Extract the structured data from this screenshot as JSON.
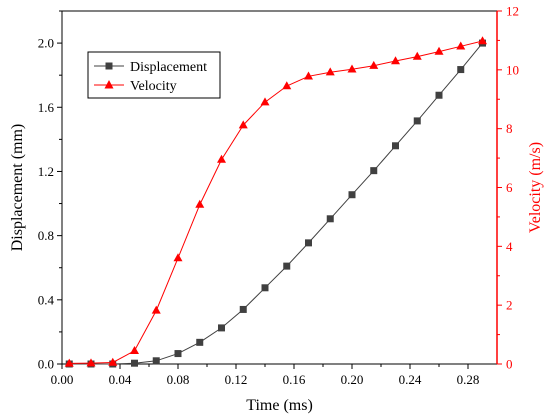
{
  "chart_data": {
    "type": "line",
    "xlabel": "Time (ms)",
    "ylabel_left": "Displacement (mm)",
    "ylabel_right": "Velocity (m/s)",
    "xlim": [
      0,
      0.3
    ],
    "ylim_left": [
      0,
      2.2
    ],
    "ylim_right": [
      0,
      12
    ],
    "x_ticks": [
      "0.00",
      "0.04",
      "0.08",
      "0.12",
      "0.16",
      "0.20",
      "0.24",
      "0.28"
    ],
    "y_left_ticks": [
      "0.0",
      "0.4",
      "0.8",
      "1.2",
      "1.6",
      "2.0"
    ],
    "y_right_ticks": [
      "0",
      "2",
      "4",
      "6",
      "8",
      "10",
      "12"
    ],
    "grid": false,
    "legend_position": "top-left",
    "series": [
      {
        "name": "Displacement",
        "axis": "left",
        "marker": "square",
        "color": "#404040",
        "x": [
          0.005,
          0.02,
          0.035,
          0.05,
          0.065,
          0.08,
          0.095,
          0.11,
          0.125,
          0.14,
          0.155,
          0.17,
          0.185,
          0.2,
          0.215,
          0.23,
          0.245,
          0.26,
          0.275,
          0.29
        ],
        "values": [
          0.0,
          0.0,
          0.0,
          0.005,
          0.02,
          0.065,
          0.135,
          0.225,
          0.34,
          0.475,
          0.61,
          0.755,
          0.905,
          1.055,
          1.205,
          1.36,
          1.515,
          1.675,
          1.835,
          2.0
        ]
      },
      {
        "name": "Velocity",
        "axis": "right",
        "marker": "triangle",
        "color": "#ff0000",
        "x": [
          0.005,
          0.02,
          0.035,
          0.05,
          0.065,
          0.08,
          0.095,
          0.11,
          0.125,
          0.14,
          0.155,
          0.17,
          0.185,
          0.2,
          0.215,
          0.23,
          0.245,
          0.26,
          0.275,
          0.29
        ],
        "values": [
          0.02,
          0.03,
          0.05,
          0.45,
          1.82,
          3.6,
          5.42,
          6.95,
          8.12,
          8.9,
          9.45,
          9.78,
          9.92,
          10.02,
          10.14,
          10.3,
          10.45,
          10.62,
          10.8,
          10.98
        ]
      }
    ]
  },
  "colors": {
    "axis": "#000000",
    "right_axis": "#ff0000"
  }
}
